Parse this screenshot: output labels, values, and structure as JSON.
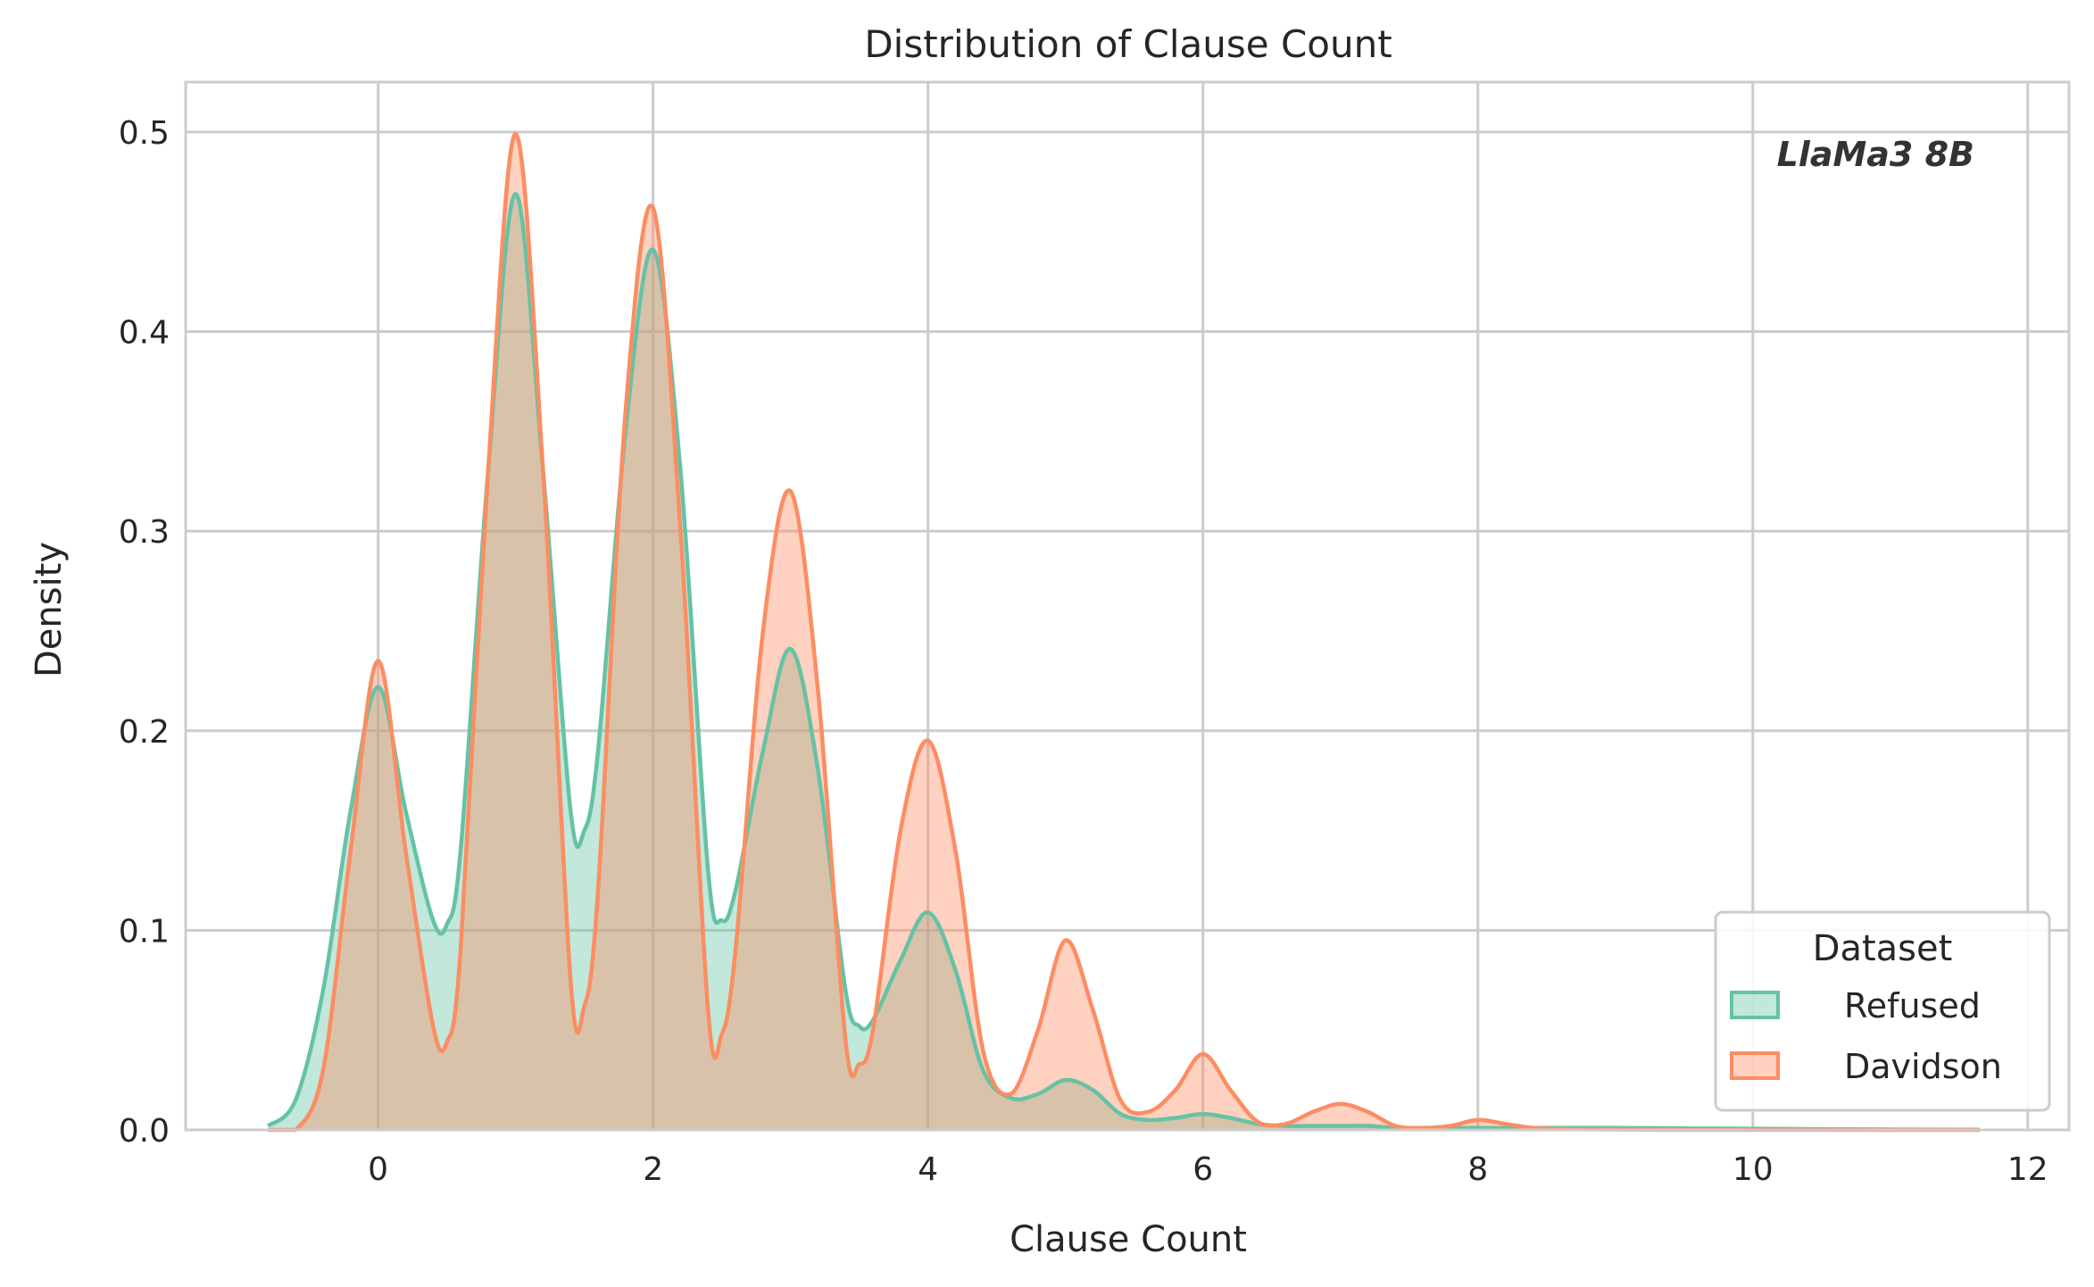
{
  "chart_data": {
    "type": "area",
    "title": "Distribution of Clause Count",
    "xlabel": "Clause Count",
    "ylabel": "Density",
    "xlim": [
      -1.4,
      12.3
    ],
    "ylim": [
      0,
      0.525
    ],
    "xticks": [
      0,
      2,
      4,
      6,
      8,
      10,
      12
    ],
    "yticks": [
      0.0,
      0.1,
      0.2,
      0.3,
      0.4,
      0.5
    ],
    "xtick_labels": [
      "0",
      "2",
      "4",
      "6",
      "8",
      "10",
      "12"
    ],
    "ytick_labels": [
      "0.0",
      "0.1",
      "0.2",
      "0.3",
      "0.4",
      "0.5"
    ],
    "grid": true,
    "annotation": "LlaMa3 8B",
    "legend": {
      "title": "Dataset",
      "position": "lower-right"
    },
    "x": [
      -0.8,
      -0.6,
      -0.4,
      -0.2,
      0,
      0.2,
      0.4,
      0.5,
      0.6,
      0.8,
      1,
      1.2,
      1.4,
      1.5,
      1.6,
      1.8,
      2,
      2.2,
      2.4,
      2.5,
      2.6,
      2.8,
      3,
      3.2,
      3.4,
      3.5,
      3.6,
      3.8,
      4,
      4.2,
      4.4,
      4.6,
      4.8,
      5,
      5.2,
      5.4,
      5.6,
      5.8,
      6,
      6.2,
      6.4,
      6.6,
      6.8,
      7,
      7.2,
      7.4,
      7.6,
      7.8,
      8,
      8.2,
      8.4,
      8.6,
      8.8,
      9,
      9.5,
      10,
      10.5,
      11,
      11.65
    ],
    "series": [
      {
        "name": "Refused",
        "color": "#66c2a5",
        "values": [
          0.002,
          0.015,
          0.07,
          0.16,
          0.222,
          0.16,
          0.105,
          0.103,
          0.14,
          0.33,
          0.469,
          0.33,
          0.16,
          0.15,
          0.19,
          0.35,
          0.441,
          0.33,
          0.13,
          0.105,
          0.12,
          0.19,
          0.241,
          0.18,
          0.07,
          0.052,
          0.055,
          0.085,
          0.109,
          0.08,
          0.03,
          0.016,
          0.018,
          0.025,
          0.02,
          0.008,
          0.005,
          0.006,
          0.008,
          0.006,
          0.003,
          0.002,
          0.002,
          0.002,
          0.002,
          0.001,
          0.001,
          0.001,
          0.001,
          0.001,
          0.001,
          0.001,
          0.001,
          0.001,
          0.0008,
          0.0006,
          0.0004,
          0.0002,
          0.0001
        ]
      },
      {
        "name": "Davidson",
        "color": "#fc8d62",
        "values": [
          0,
          0,
          0.03,
          0.14,
          0.235,
          0.14,
          0.052,
          0.044,
          0.09,
          0.33,
          0.499,
          0.33,
          0.075,
          0.062,
          0.12,
          0.36,
          0.462,
          0.3,
          0.06,
          0.048,
          0.09,
          0.25,
          0.32,
          0.22,
          0.045,
          0.033,
          0.05,
          0.15,
          0.195,
          0.14,
          0.04,
          0.018,
          0.05,
          0.095,
          0.06,
          0.015,
          0.009,
          0.02,
          0.038,
          0.02,
          0.004,
          0.003,
          0.009,
          0.013,
          0.009,
          0.002,
          0.001,
          0.002,
          0.005,
          0.003,
          0.001,
          0.0005,
          0.0003,
          0.0002,
          0.0001,
          0.0001,
          0.0001,
          0,
          0
        ]
      }
    ]
  }
}
